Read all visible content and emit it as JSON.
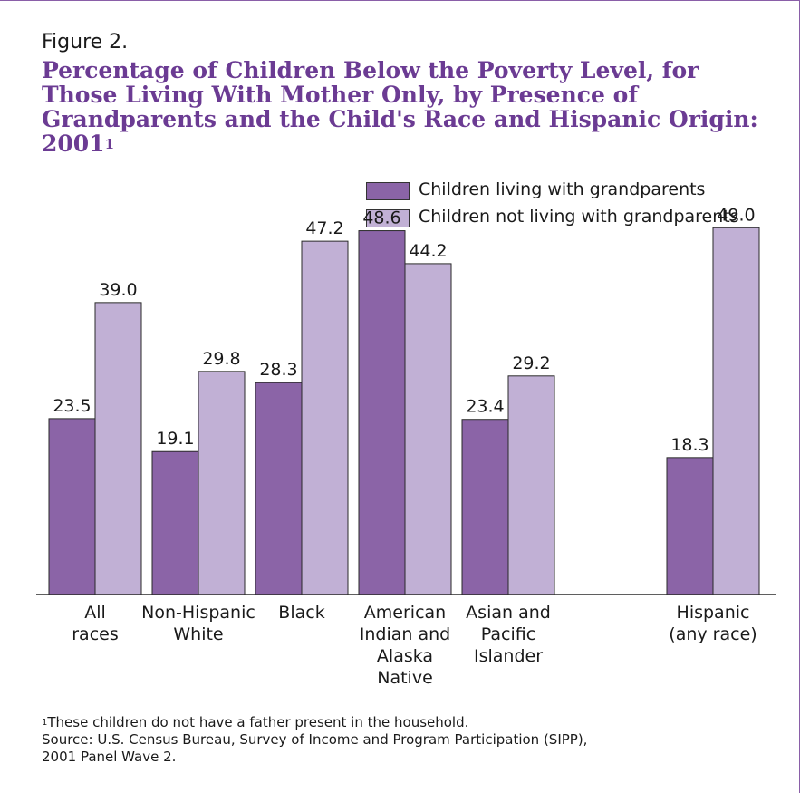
{
  "figure_label": "Figure 2.",
  "title": "Percentage of Children Below the Poverty Level, for Those Living With Mother Only, by Presence of Grandparents and the Child's Race and Hispanic Origin: 2001",
  "title_superscript": "1",
  "colors": {
    "with_grandparents": "#8b64a7",
    "without_grandparents": "#c1b0d5",
    "title": "#6b3b93"
  },
  "footnote": {
    "marker": "1",
    "text": "These children do not have a father present in the household.",
    "source": "Source:  U.S. Census Bureau, Survey of Income and Program Participation (SIPP),",
    "source_line2": "2001 Panel Wave 2."
  },
  "chart_data": {
    "type": "bar",
    "categories": [
      [
        "All",
        "races"
      ],
      [
        "Non-Hispanic",
        "White"
      ],
      [
        "Black"
      ],
      [
        "American",
        "Indian and",
        "Alaska",
        "Native"
      ],
      [
        "Asian and",
        "Pacific",
        "Islander"
      ],
      [
        "Hispanic",
        "(any race)"
      ]
    ],
    "series": [
      {
        "name": "Children living with grandparents",
        "values": [
          23.5,
          19.1,
          28.3,
          48.6,
          23.4,
          18.3
        ]
      },
      {
        "name": "Children not living with grandparents",
        "values": [
          39.0,
          29.8,
          47.2,
          44.2,
          29.2,
          49.0
        ]
      }
    ],
    "ylim": [
      0,
      50
    ],
    "grid": false,
    "legend_position": "top-right"
  }
}
